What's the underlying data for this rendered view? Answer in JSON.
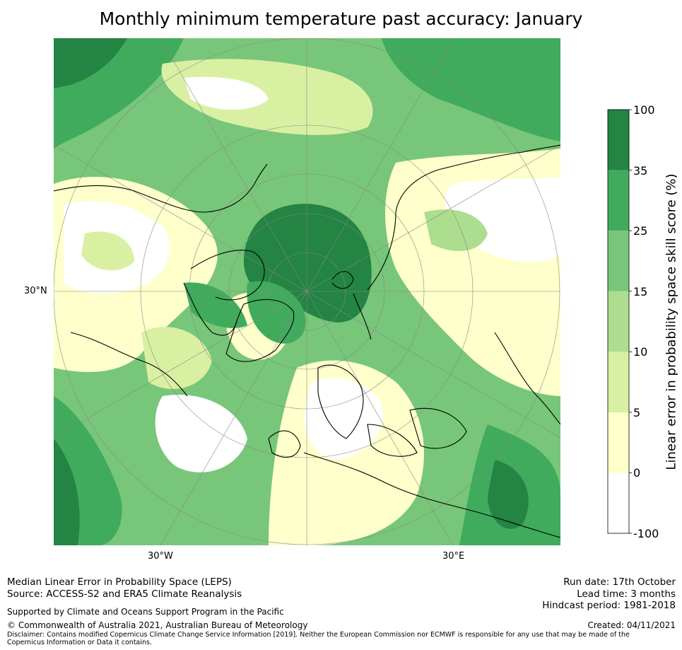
{
  "title": "Monthly minimum temperature past accuracy: January",
  "map": {
    "projection": "north-polar-stereographic",
    "lat_labels": [
      "30°N"
    ],
    "lon_labels": [
      "30°W",
      "30°E"
    ],
    "colors": {
      "c0": "#ffffff",
      "c5": "#ffffcc",
      "c10": "#d9f0a3",
      "c15": "#addd8e",
      "c25": "#78c679",
      "c35": "#41ab5d",
      "c100": "#238443",
      "coast": "#000000",
      "grid": "#888888"
    }
  },
  "colorbar": {
    "title": "Linear error in probability space skill score (%)",
    "ticks": [
      "100",
      "35",
      "25",
      "15",
      "10",
      "5",
      "0",
      "-100"
    ],
    "bands": [
      {
        "range": "35 to 100",
        "color": "#238443"
      },
      {
        "range": "25 to 35",
        "color": "#41ab5d"
      },
      {
        "range": "15 to 25",
        "color": "#78c679"
      },
      {
        "range": "10 to 15",
        "color": "#addd8e"
      },
      {
        "range": "5 to 10",
        "color": "#d9f0a3"
      },
      {
        "range": "0 to 5",
        "color": "#ffffcc"
      },
      {
        "range": "-100 to 0",
        "color": "#ffffff"
      }
    ]
  },
  "footer": {
    "method": "Median Linear Error in Probability Space (LEPS)",
    "source": "Source: ACCESS-S2 and ERA5 Climate Reanalysis",
    "support": "Supported by Climate and Oceans Support Program in the Pacific",
    "copyright": "© Commonwealth of Australia 2021, Australian Bureau of Meteorology",
    "disclaimer": "Disclaimer: Contains modified Copernicus Climate Change Service Information [2019]. Neither the European Commission nor ECMWF is responsible for any use that may be made of the Copernicus Information or Data it contains.",
    "run_date": "Run date: 17th October",
    "lead_time": "Lead time: 3 months",
    "hindcast": "Hindcast period: 1981-2018",
    "created": "Created: 04/11/2021"
  }
}
